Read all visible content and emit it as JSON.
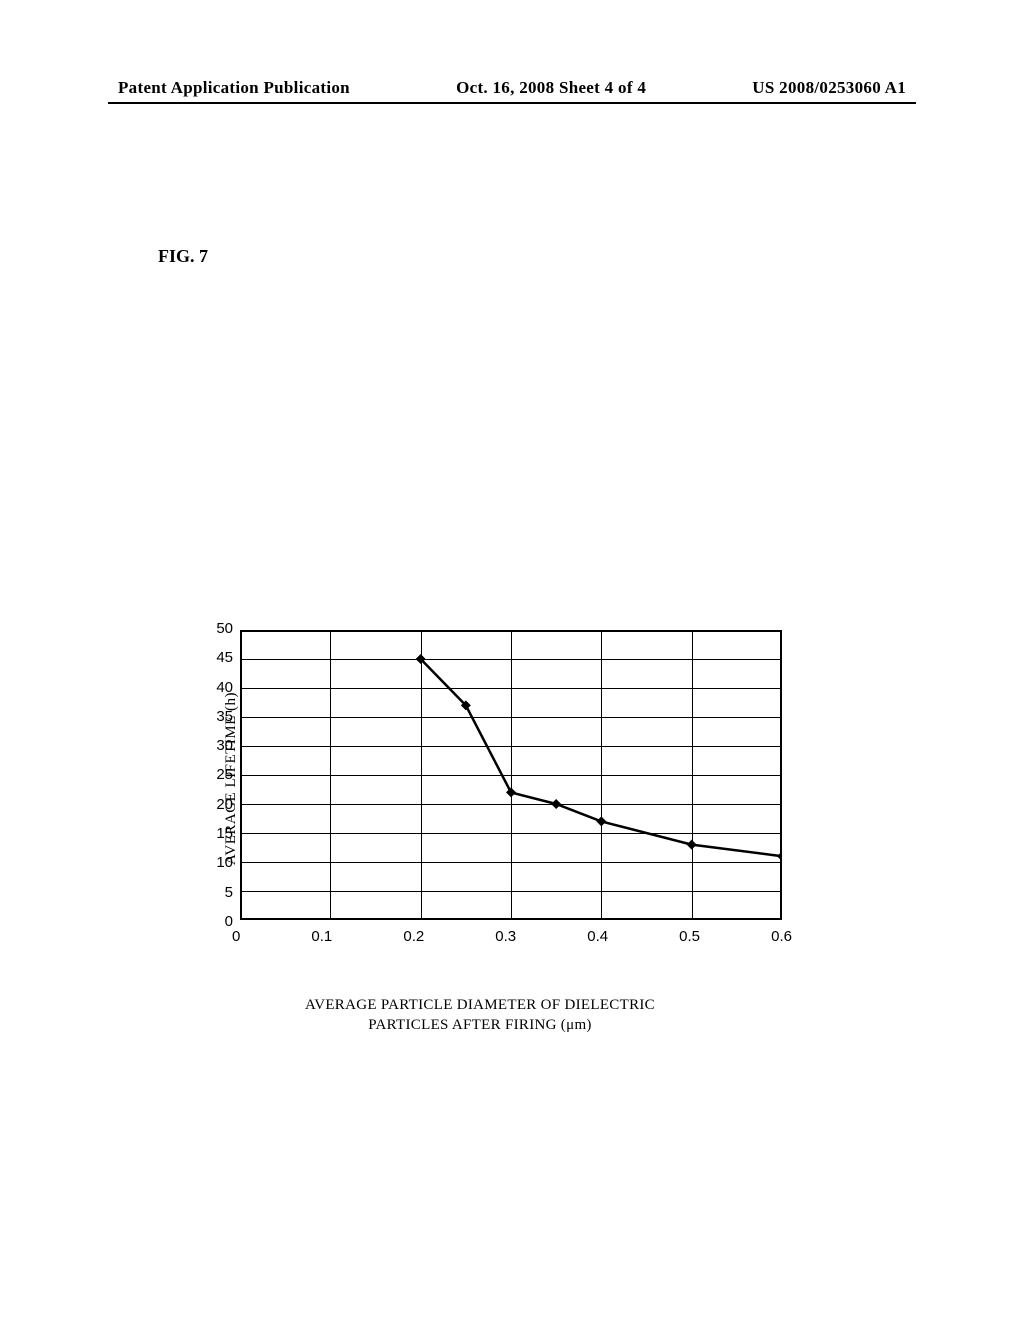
{
  "header": {
    "left": "Patent Application Publication",
    "center": "Oct. 16, 2008  Sheet 4 of 4",
    "right": "US 2008/0253060 A1"
  },
  "figure": {
    "label": "FIG. 7"
  },
  "chart": {
    "type": "line",
    "y_axis": {
      "title": "AVERAGE LIFETIME (h)",
      "min": 0,
      "max": 50,
      "tick_step": 5,
      "ticks": [
        "50",
        "45",
        "40",
        "35",
        "30",
        "25",
        "20",
        "15",
        "10",
        "5",
        "0"
      ]
    },
    "x_axis": {
      "title_line1": "AVERAGE PARTICLE DIAMETER OF DIELECTRIC",
      "title_line2": "PARTICLES AFTER FIRING (μm)",
      "min": 0,
      "max": 0.6,
      "tick_step": 0.1,
      "ticks": [
        "0",
        "0.1",
        "0.2",
        "0.3",
        "0.4",
        "0.5",
        "0.6"
      ]
    },
    "data_points": [
      {
        "x": 0.2,
        "y": 45
      },
      {
        "x": 0.25,
        "y": 37
      },
      {
        "x": 0.3,
        "y": 22
      },
      {
        "x": 0.35,
        "y": 20
      },
      {
        "x": 0.4,
        "y": 17
      },
      {
        "x": 0.5,
        "y": 13
      },
      {
        "x": 0.6,
        "y": 11
      }
    ],
    "line_color": "#000000",
    "line_width": 2.5,
    "marker_style": "diamond",
    "marker_size": 5,
    "grid_color": "#000000",
    "background_color": "#ffffff",
    "border_color": "#000000"
  }
}
